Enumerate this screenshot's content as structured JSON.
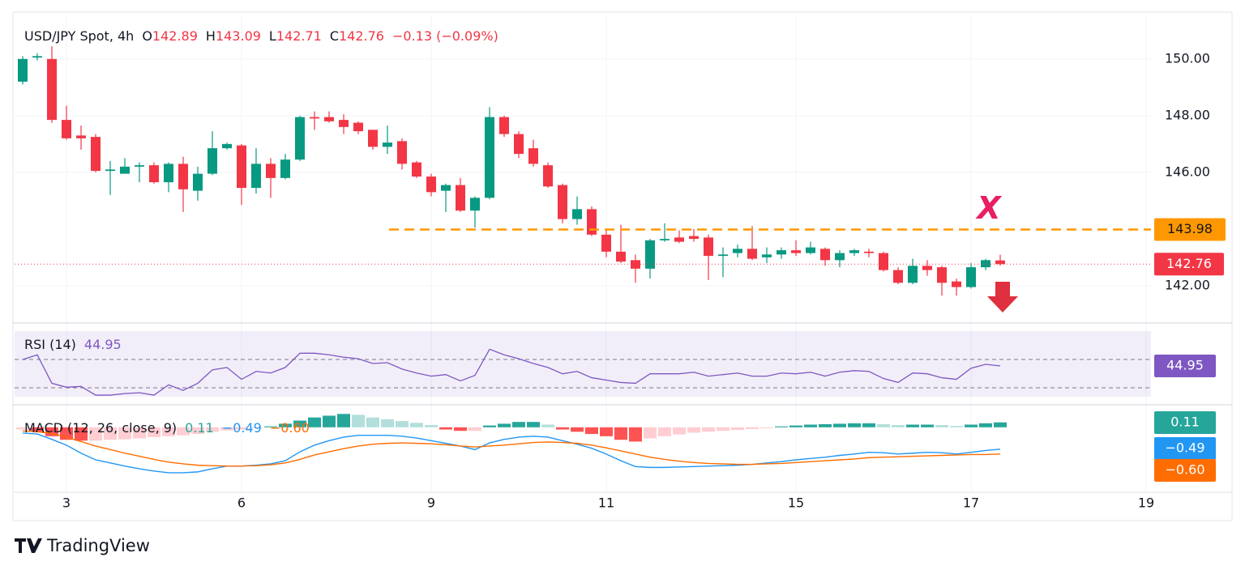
{
  "chart_data": {
    "type": "candlestick",
    "header": {
      "symbol": "USD/JPY Spot, 4h",
      "labels": [
        "O",
        "H",
        "L",
        "C"
      ],
      "change": "−0.13 (−0.09%)"
    },
    "up_color": "#089981",
    "down_color": "#f23645",
    "candles": {
      "open": [
        149.2,
        150.05,
        150.0,
        147.85,
        147.3,
        147.25,
        146.05,
        145.95,
        146.2,
        146.25,
        145.65,
        146.3,
        145.35,
        145.95,
        146.85,
        146.95,
        145.45,
        146.3,
        145.8,
        146.45,
        147.95,
        147.95,
        147.85,
        147.75,
        147.5,
        146.9,
        147.1,
        146.35,
        145.85,
        145.35,
        145.55,
        144.65,
        145.1,
        147.95,
        147.35,
        146.85,
        146.25,
        145.55,
        144.35,
        144.7,
        143.8,
        143.2,
        142.9,
        142.6,
        143.6,
        143.7,
        143.75,
        143.7,
        143.05,
        143.15,
        143.3,
        143.0,
        143.1,
        143.25,
        143.15,
        143.3,
        142.9,
        143.15,
        143.2,
        143.15,
        142.55,
        142.1,
        142.7,
        142.65,
        142.15,
        141.95,
        142.65,
        142.89
      ],
      "high": [
        150.1,
        150.2,
        150.45,
        148.35,
        147.65,
        147.35,
        146.4,
        146.5,
        146.35,
        146.35,
        146.35,
        146.55,
        146.2,
        147.45,
        147.05,
        147.0,
        146.85,
        146.5,
        146.65,
        148.0,
        148.15,
        148.15,
        148.05,
        147.8,
        147.5,
        147.65,
        147.2,
        146.4,
        145.95,
        145.6,
        145.8,
        145.15,
        148.3,
        148.0,
        147.45,
        147.15,
        146.35,
        145.6,
        145.15,
        144.8,
        143.95,
        144.15,
        143.1,
        143.65,
        144.2,
        143.95,
        144.0,
        143.8,
        143.35,
        143.45,
        144.1,
        143.35,
        143.35,
        143.6,
        143.55,
        143.35,
        143.25,
        143.3,
        143.3,
        143.2,
        142.65,
        142.95,
        142.9,
        142.7,
        142.25,
        142.8,
        142.95,
        143.09
      ],
      "low": [
        149.1,
        149.95,
        147.75,
        147.15,
        146.8,
        146.0,
        145.2,
        145.95,
        145.65,
        145.6,
        145.3,
        144.6,
        145.0,
        145.9,
        146.8,
        144.85,
        145.25,
        145.1,
        145.75,
        146.4,
        147.5,
        147.75,
        147.35,
        147.35,
        146.8,
        146.65,
        146.1,
        145.8,
        145.15,
        144.6,
        144.6,
        144.05,
        145.05,
        147.25,
        146.5,
        146.2,
        145.45,
        144.2,
        144.15,
        143.75,
        143.0,
        142.8,
        142.1,
        142.25,
        143.55,
        143.5,
        143.55,
        142.2,
        142.3,
        143.0,
        142.9,
        142.8,
        142.95,
        143.05,
        143.1,
        142.7,
        142.65,
        143.05,
        143.0,
        142.5,
        142.05,
        142.05,
        142.35,
        141.65,
        141.65,
        141.9,
        142.55,
        142.71
      ],
      "close": [
        150.0,
        150.1,
        147.85,
        147.2,
        147.2,
        146.05,
        146.1,
        146.2,
        146.25,
        145.65,
        146.3,
        145.4,
        145.95,
        146.85,
        147.0,
        145.45,
        146.3,
        145.8,
        146.45,
        147.95,
        147.9,
        147.8,
        147.6,
        147.45,
        146.9,
        147.05,
        146.3,
        145.85,
        145.3,
        145.55,
        144.65,
        145.1,
        147.95,
        147.35,
        146.65,
        146.3,
        145.5,
        144.35,
        144.7,
        143.8,
        143.2,
        142.85,
        142.6,
        143.6,
        143.65,
        143.55,
        143.65,
        143.05,
        143.1,
        143.3,
        142.95,
        143.1,
        143.25,
        143.15,
        143.35,
        142.9,
        143.15,
        143.25,
        143.15,
        142.55,
        142.1,
        142.7,
        142.55,
        142.1,
        141.95,
        142.65,
        142.9,
        142.76
      ]
    },
    "ylim": [
      140.71,
      151.51
    ],
    "yticks": [
      {
        "value": 142,
        "label": "142.00"
      },
      {
        "value": 146,
        "label": "146.00"
      },
      {
        "value": 148,
        "label": "148.00"
      },
      {
        "value": 150,
        "label": "150.00"
      }
    ],
    "grid": true,
    "categories": [
      null,
      null,
      null,
      "3",
      null,
      null,
      null,
      null,
      null,
      null,
      null,
      null,
      null,
      null,
      null,
      "6",
      null,
      null,
      null,
      null,
      null,
      null,
      null,
      null,
      null,
      null,
      null,
      null,
      "9",
      null,
      null,
      null,
      null,
      null,
      null,
      null,
      null,
      null,
      null,
      null,
      "11",
      null,
      null,
      null,
      null,
      null,
      null,
      null,
      null,
      null,
      null,
      null,
      null,
      "15",
      null,
      null,
      null,
      null,
      null,
      null,
      null,
      null,
      null,
      null,
      null,
      "17",
      null,
      null
    ],
    "far_category": "19",
    "level": {
      "value": 143.98,
      "color": "#ff9800"
    },
    "annotation": "X",
    "annotation_color": "#e91e63",
    "rsi": {
      "title": "RSI (14)",
      "color": "#7e57c2",
      "ylim": [
        25.5,
        67
      ],
      "values": [
        49,
        52,
        34,
        31.5,
        32,
        26.5,
        26.5,
        27.5,
        28,
        26.5,
        33,
        29.5,
        34,
        42.5,
        44,
        36.5,
        41.5,
        40.5,
        44,
        53,
        53,
        52,
        50.5,
        49.5,
        46.5,
        47,
        43,
        40.5,
        38.5,
        39.5,
        35.5,
        39,
        55.5,
        52,
        49.5,
        46.5,
        44,
        40,
        41.5,
        37.5,
        36,
        34.5,
        34,
        40,
        40,
        40,
        41,
        38.5,
        39.5,
        40.5,
        38.5,
        38.5,
        40.5,
        40,
        41,
        38.5,
        41,
        42,
        41.5,
        37,
        34.5,
        40.5,
        40,
        37.5,
        36.5,
        43.5,
        46,
        44.95
      ]
    },
    "macd": {
      "title": "MACD (12, 26, close, 9)",
      "ylim": [
        -1.22,
        0.45
      ],
      "histogram": {
        "colors": [
          "#26a69a",
          "#b2dfdb",
          "#ff5252",
          "#ffcdd2"
        ],
        "values": [
          -0.05,
          -0.1,
          -0.2,
          -0.28,
          -0.3,
          -0.3,
          -0.28,
          -0.27,
          -0.25,
          -0.22,
          -0.2,
          -0.18,
          -0.15,
          -0.1,
          -0.07,
          -0.05,
          -0.02,
          0.02,
          0.08,
          0.15,
          0.22,
          0.26,
          0.3,
          0.28,
          0.22,
          0.18,
          0.14,
          0.1,
          0.05,
          -0.05,
          -0.08,
          -0.08,
          0.04,
          0.08,
          0.12,
          0.12,
          0.06,
          -0.05,
          -0.1,
          -0.15,
          -0.2,
          -0.28,
          -0.32,
          -0.25,
          -0.2,
          -0.16,
          -0.12,
          -0.1,
          -0.08,
          -0.06,
          -0.04,
          -0.02,
          0.02,
          0.04,
          0.06,
          0.07,
          0.08,
          0.09,
          0.09,
          0.07,
          0.05,
          0.06,
          0.06,
          0.05,
          0.03,
          0.06,
          0.09,
          0.11
        ]
      },
      "macd_line": {
        "color": "#2196f3",
        "last_label": "−0.49",
        "values": [
          -0.13,
          -0.15,
          -0.27,
          -0.4,
          -0.58,
          -0.73,
          -0.8,
          -0.87,
          -0.93,
          -0.98,
          -1.02,
          -1.02,
          -1.0,
          -0.93,
          -0.87,
          -0.87,
          -0.85,
          -0.82,
          -0.75,
          -0.55,
          -0.4,
          -0.3,
          -0.22,
          -0.18,
          -0.18,
          -0.18,
          -0.2,
          -0.24,
          -0.3,
          -0.36,
          -0.42,
          -0.5,
          -0.35,
          -0.27,
          -0.22,
          -0.2,
          -0.22,
          -0.3,
          -0.38,
          -0.47,
          -0.6,
          -0.75,
          -0.88,
          -0.9,
          -0.9,
          -0.89,
          -0.88,
          -0.87,
          -0.86,
          -0.85,
          -0.83,
          -0.8,
          -0.77,
          -0.73,
          -0.7,
          -0.67,
          -0.63,
          -0.6,
          -0.56,
          -0.57,
          -0.6,
          -0.58,
          -0.56,
          -0.57,
          -0.6,
          -0.56,
          -0.52,
          -0.49
        ]
      },
      "signal_line": {
        "color": "#ff6d00",
        "last_label": "−0.60",
        "values": [
          -0.08,
          -0.1,
          -0.14,
          -0.22,
          -0.32,
          -0.42,
          -0.5,
          -0.58,
          -0.65,
          -0.72,
          -0.78,
          -0.82,
          -0.85,
          -0.86,
          -0.87,
          -0.87,
          -0.86,
          -0.84,
          -0.8,
          -0.72,
          -0.62,
          -0.55,
          -0.48,
          -0.42,
          -0.38,
          -0.36,
          -0.35,
          -0.36,
          -0.37,
          -0.39,
          -0.42,
          -0.44,
          -0.42,
          -0.4,
          -0.37,
          -0.34,
          -0.33,
          -0.34,
          -0.36,
          -0.4,
          -0.46,
          -0.53,
          -0.6,
          -0.67,
          -0.72,
          -0.76,
          -0.79,
          -0.81,
          -0.82,
          -0.83,
          -0.83,
          -0.82,
          -0.81,
          -0.79,
          -0.77,
          -0.75,
          -0.73,
          -0.71,
          -0.68,
          -0.67,
          -0.66,
          -0.65,
          -0.64,
          -0.63,
          -0.62,
          -0.61,
          -0.61,
          -0.6
        ]
      }
    }
  },
  "brand": "TradingView"
}
